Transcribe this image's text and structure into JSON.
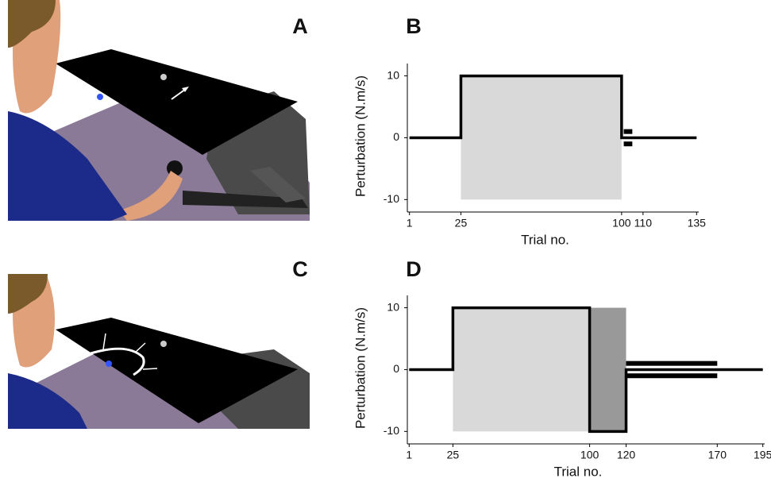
{
  "panel_labels": [
    "A",
    "B",
    "C",
    "D"
  ],
  "chart_data": [
    {
      "type": "line",
      "ylabel": "Perturbation (N.m/s)",
      "xlabel": "Trial no.",
      "x": [
        1,
        25,
        25,
        100,
        100,
        135
      ],
      "values": [
        0,
        0,
        10,
        10,
        0,
        0
      ],
      "color": "#000000",
      "xlim": [
        0,
        136
      ],
      "ylim": [
        -11.5,
        12
      ],
      "xticks": [
        1,
        25,
        100,
        110,
        135
      ],
      "yticks": [
        -10,
        0,
        10
      ],
      "shaded_regions": [
        {
          "x": [
            25,
            100
          ],
          "y": [
            -10,
            10
          ],
          "color": "#d9d9d9"
        }
      ],
      "markers": [
        {
          "x": [
            101,
            105
          ],
          "y": 1
        },
        {
          "x": [
            101,
            105
          ],
          "y": -1
        }
      ]
    },
    {
      "type": "line",
      "ylabel": "Perturbation (N.m/s)",
      "xlabel": "Trial no.",
      "x": [
        1,
        25,
        25,
        100,
        100,
        120,
        120,
        195
      ],
      "values": [
        0,
        0,
        10,
        10,
        -10,
        -10,
        0,
        0
      ],
      "color": "#000000",
      "xlim": [
        0,
        196
      ],
      "ylim": [
        -11.5,
        12
      ],
      "xticks": [
        1,
        25,
        100,
        120,
        170,
        195
      ],
      "yticks": [
        -10,
        0,
        10
      ],
      "shaded_regions": [
        {
          "x": [
            25,
            100
          ],
          "y": [
            -10,
            10
          ],
          "color": "#d9d9d9"
        },
        {
          "x": [
            100,
            120
          ],
          "y": [
            -10,
            10
          ],
          "color": "#999999"
        }
      ],
      "markers": [
        {
          "x": [
            120,
            170
          ],
          "y": 1
        },
        {
          "x": [
            120,
            170
          ],
          "y": -1
        }
      ]
    }
  ]
}
